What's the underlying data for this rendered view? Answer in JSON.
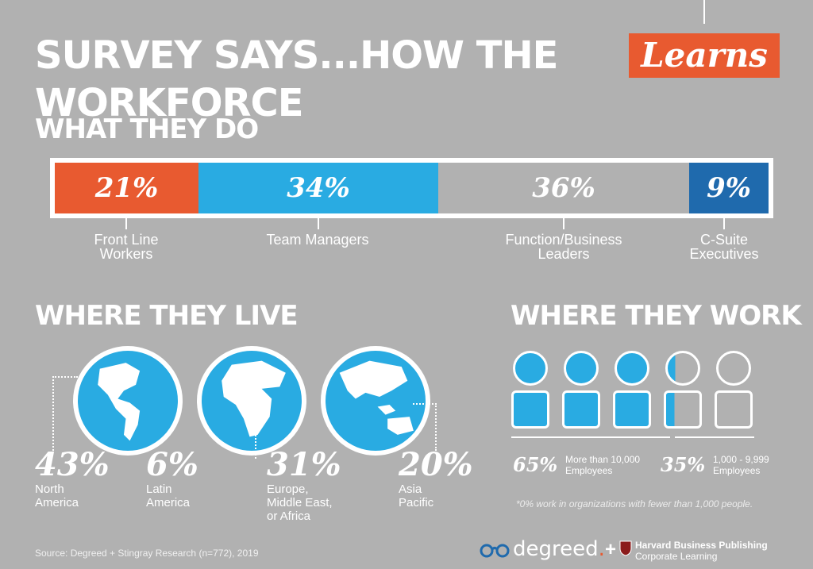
{
  "title": {
    "main": "SURVEY SAYS...HOW THE WORKFORCE",
    "accent": "Learns"
  },
  "what_they_do": {
    "heading": "WHAT THEY DO",
    "segments": [
      {
        "pct": "21%",
        "label_l1": "Front Line",
        "label_l2": "Workers",
        "color": "#e85a30"
      },
      {
        "pct": "34%",
        "label_l1": "Team Managers",
        "label_l2": "",
        "color": "#29abe2"
      },
      {
        "pct": "36%",
        "label_l1": "Function/Business",
        "label_l2": "Leaders",
        "color": "#b1b1b1"
      },
      {
        "pct": "9%",
        "label_l1": "C-Suite",
        "label_l2": "Executives",
        "color": "#1f6aad"
      }
    ]
  },
  "where_they_live": {
    "heading": "WHERE THEY LIVE",
    "regions": [
      {
        "pct": "43%",
        "l1": "North",
        "l2": "America",
        "l3": ""
      },
      {
        "pct": "6%",
        "l1": "Latin",
        "l2": "America",
        "l3": ""
      },
      {
        "pct": "31%",
        "l1": "Europe,",
        "l2": "Middle East,",
        "l3": "or Africa"
      },
      {
        "pct": "20%",
        "l1": "Asia",
        "l2": "Pacific",
        "l3": ""
      }
    ]
  },
  "where_they_work": {
    "heading": "WHERE THEY WORK",
    "groups": [
      {
        "pct": "65%",
        "l1": "More than 10,000",
        "l2": "Employees"
      },
      {
        "pct": "35%",
        "l1": "1,000 - 9,999",
        "l2": "Employees"
      }
    ],
    "footnote": "*0% work in organizations with fewer than 1,000 people."
  },
  "source": "Source: Degreed + Stingray Research (n=772), 2019",
  "logos": {
    "degreed": "degreed",
    "degreed_dot": ".",
    "plus": "+",
    "hbp_line1": "Harvard Business Publishing",
    "hbp_line2": "Corporate Learning"
  }
}
